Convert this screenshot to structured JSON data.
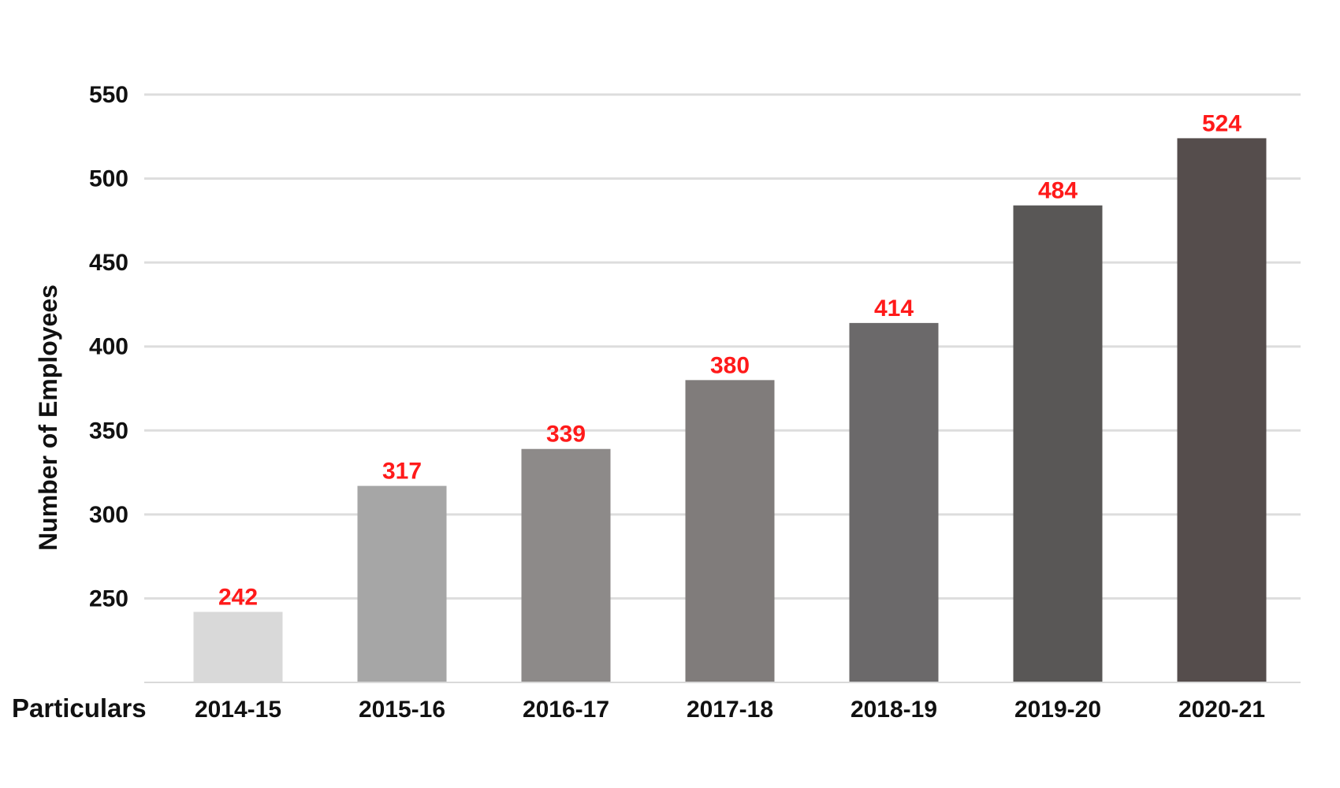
{
  "chart_data": {
    "type": "bar",
    "xlabel": "Particulars",
    "ylabel": "Number of Employees",
    "categories": [
      "2014-15",
      "2015-16",
      "2016-17",
      "2017-18",
      "2018-19",
      "2019-20",
      "2020-21"
    ],
    "values": [
      242,
      317,
      339,
      380,
      414,
      484,
      524
    ],
    "bar_colors": [
      "#d9d9d9",
      "#a6a6a6",
      "#8d8a89",
      "#807c7b",
      "#6b696a",
      "#595756",
      "#554d4c"
    ],
    "data_label_color": "#ff1a1a",
    "yticks": [
      250,
      300,
      350,
      400,
      450,
      500,
      550
    ],
    "ylim": [
      200,
      550
    ],
    "grid": true,
    "gridline_color": "#dddddd"
  }
}
